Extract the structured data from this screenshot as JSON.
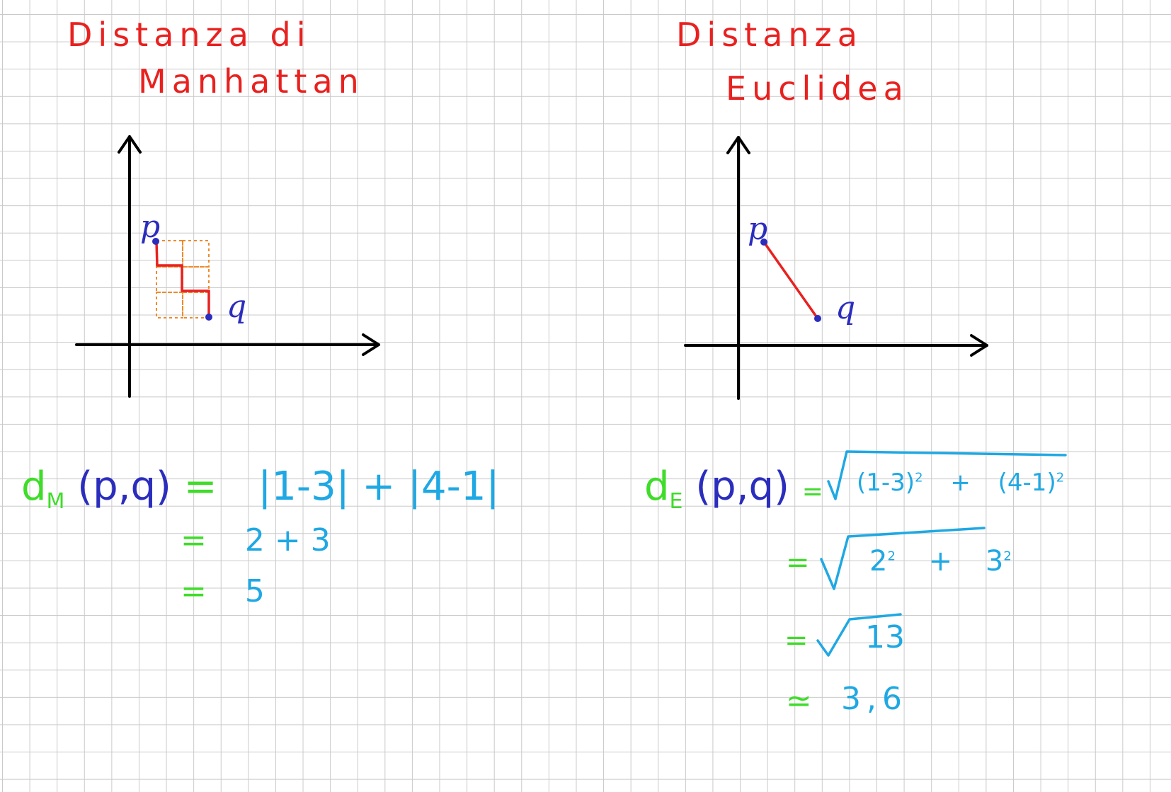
{
  "manhattan": {
    "title_line1": "Distanza di",
    "title_line2": "Manhattan",
    "point_p": "p",
    "point_q": "q",
    "line1": {
      "lhs": "d",
      "lhs_sub": "M",
      "args": "(p,q)",
      "eq": "=",
      "rhs": "|1-3| + |4-1|"
    },
    "line2": {
      "eq": "=",
      "rhs": "2 + 3"
    },
    "line3": {
      "eq": "=",
      "rhs": "5"
    }
  },
  "euclidea": {
    "title_line1": "Distanza",
    "title_line2": "Euclidea",
    "point_p": "p",
    "point_q": "q",
    "line1": {
      "lhs": "d",
      "lhs_sub": "E",
      "args": "(p,q)",
      "eq": "=",
      "rhs_a": "(1-3)",
      "rhs_op": "+",
      "rhs_b": "(4-1)",
      "exp": "2"
    },
    "line2": {
      "eq": "=",
      "base_a": "2",
      "op": "+",
      "base_b": "3",
      "exp": "2"
    },
    "line3": {
      "eq": "=",
      "rhs": "13"
    },
    "line4": {
      "eq": "≃",
      "rhs": "3,6"
    }
  },
  "colors": {
    "title": "#e8211f",
    "lhs": "#3fdc2a",
    "points": "#2b2dbd",
    "rhs": "#1fa8e3",
    "path": "#e8211f",
    "cells": "#f08a2a",
    "axes": "#000000"
  }
}
